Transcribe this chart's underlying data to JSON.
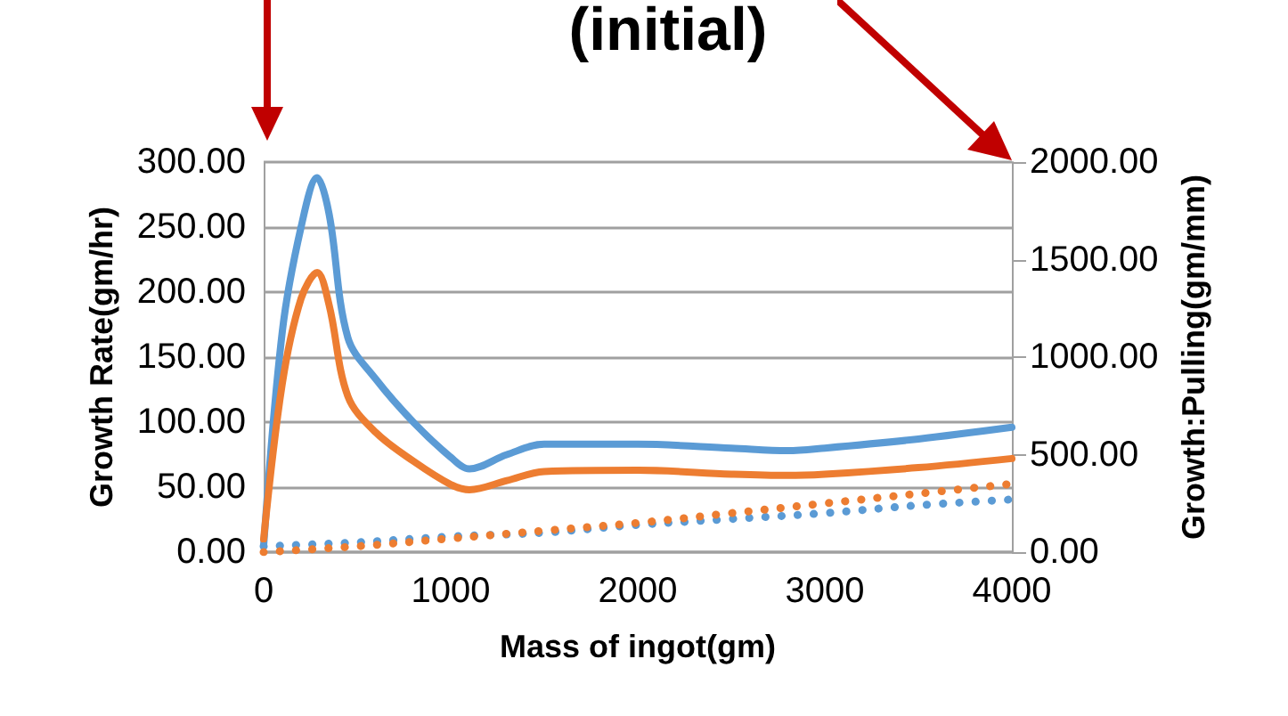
{
  "chart_data": {
    "type": "line",
    "title": "(initial)",
    "xlabel": "Mass of ingot(gm)",
    "ylabel": "Growth Rate(gm/hr)",
    "y2label": "Growth:Pulling(gm/mm)",
    "xlim": [
      0,
      4000
    ],
    "xticks": [
      0,
      1000,
      2000,
      3000,
      4000
    ],
    "ylim": [
      0,
      300
    ],
    "yticks": [
      {
        "value": 0,
        "label": "0.00"
      },
      {
        "value": 50,
        "label": "50.00"
      },
      {
        "value": 100,
        "label": "100.00"
      },
      {
        "value": 150,
        "label": "150.00"
      },
      {
        "value": 200,
        "label": "200.00"
      },
      {
        "value": 250,
        "label": "250.00"
      },
      {
        "value": 300,
        "label": "300.00"
      }
    ],
    "y2lim": [
      0,
      2000
    ],
    "y2ticks": [
      {
        "value": 0,
        "label": "0.00"
      },
      {
        "value": 500,
        "label": "500.00"
      },
      {
        "value": 1000,
        "label": "1000.00"
      },
      {
        "value": 1500,
        "label": "1500.00"
      },
      {
        "value": 2000,
        "label": "2000.00"
      }
    ],
    "grid": "y",
    "marker": "none",
    "series": [
      {
        "color": "#5b9bd5",
        "line_style": "solid",
        "x": [
          0,
          100,
          200,
          286,
          350,
          450,
          600,
          800,
          1000,
          1100,
          1300,
          1500,
          2000,
          2500,
          2800,
          3000,
          3500,
          4000
        ],
        "values": [
          5,
          170,
          250,
          288,
          260,
          165,
          133,
          100,
          73,
          64,
          75,
          83,
          83,
          80,
          78,
          80,
          87,
          96
        ]
      },
      {
        "color": "#ed7d31",
        "line_style": "solid",
        "x": [
          0,
          100,
          200,
          286,
          350,
          450,
          600,
          800,
          1000,
          1100,
          1300,
          1500,
          2000,
          2500,
          2800,
          3000,
          3500,
          4000
        ],
        "values": [
          10,
          130,
          195,
          215,
          190,
          120,
          92,
          70,
          52,
          48,
          55,
          62,
          63,
          60,
          59,
          60,
          65,
          72
        ]
      },
      {
        "color": "#5b9bd5",
        "line_style": "dotted",
        "axis": "y2",
        "x": [
          0,
          500,
          1000,
          1500,
          2000,
          2500,
          3000,
          3500,
          4000
        ],
        "values": [
          30,
          50,
          80,
          100,
          140,
          170,
          200,
          240,
          270
        ]
      },
      {
        "color": "#ed7d31",
        "line_style": "dotted",
        "axis": "y2",
        "x": [
          0,
          500,
          1000,
          1500,
          2000,
          2500,
          3000,
          3500,
          4000
        ],
        "values": [
          0,
          30,
          70,
          110,
          150,
          200,
          250,
          300,
          350
        ]
      }
    ]
  }
}
